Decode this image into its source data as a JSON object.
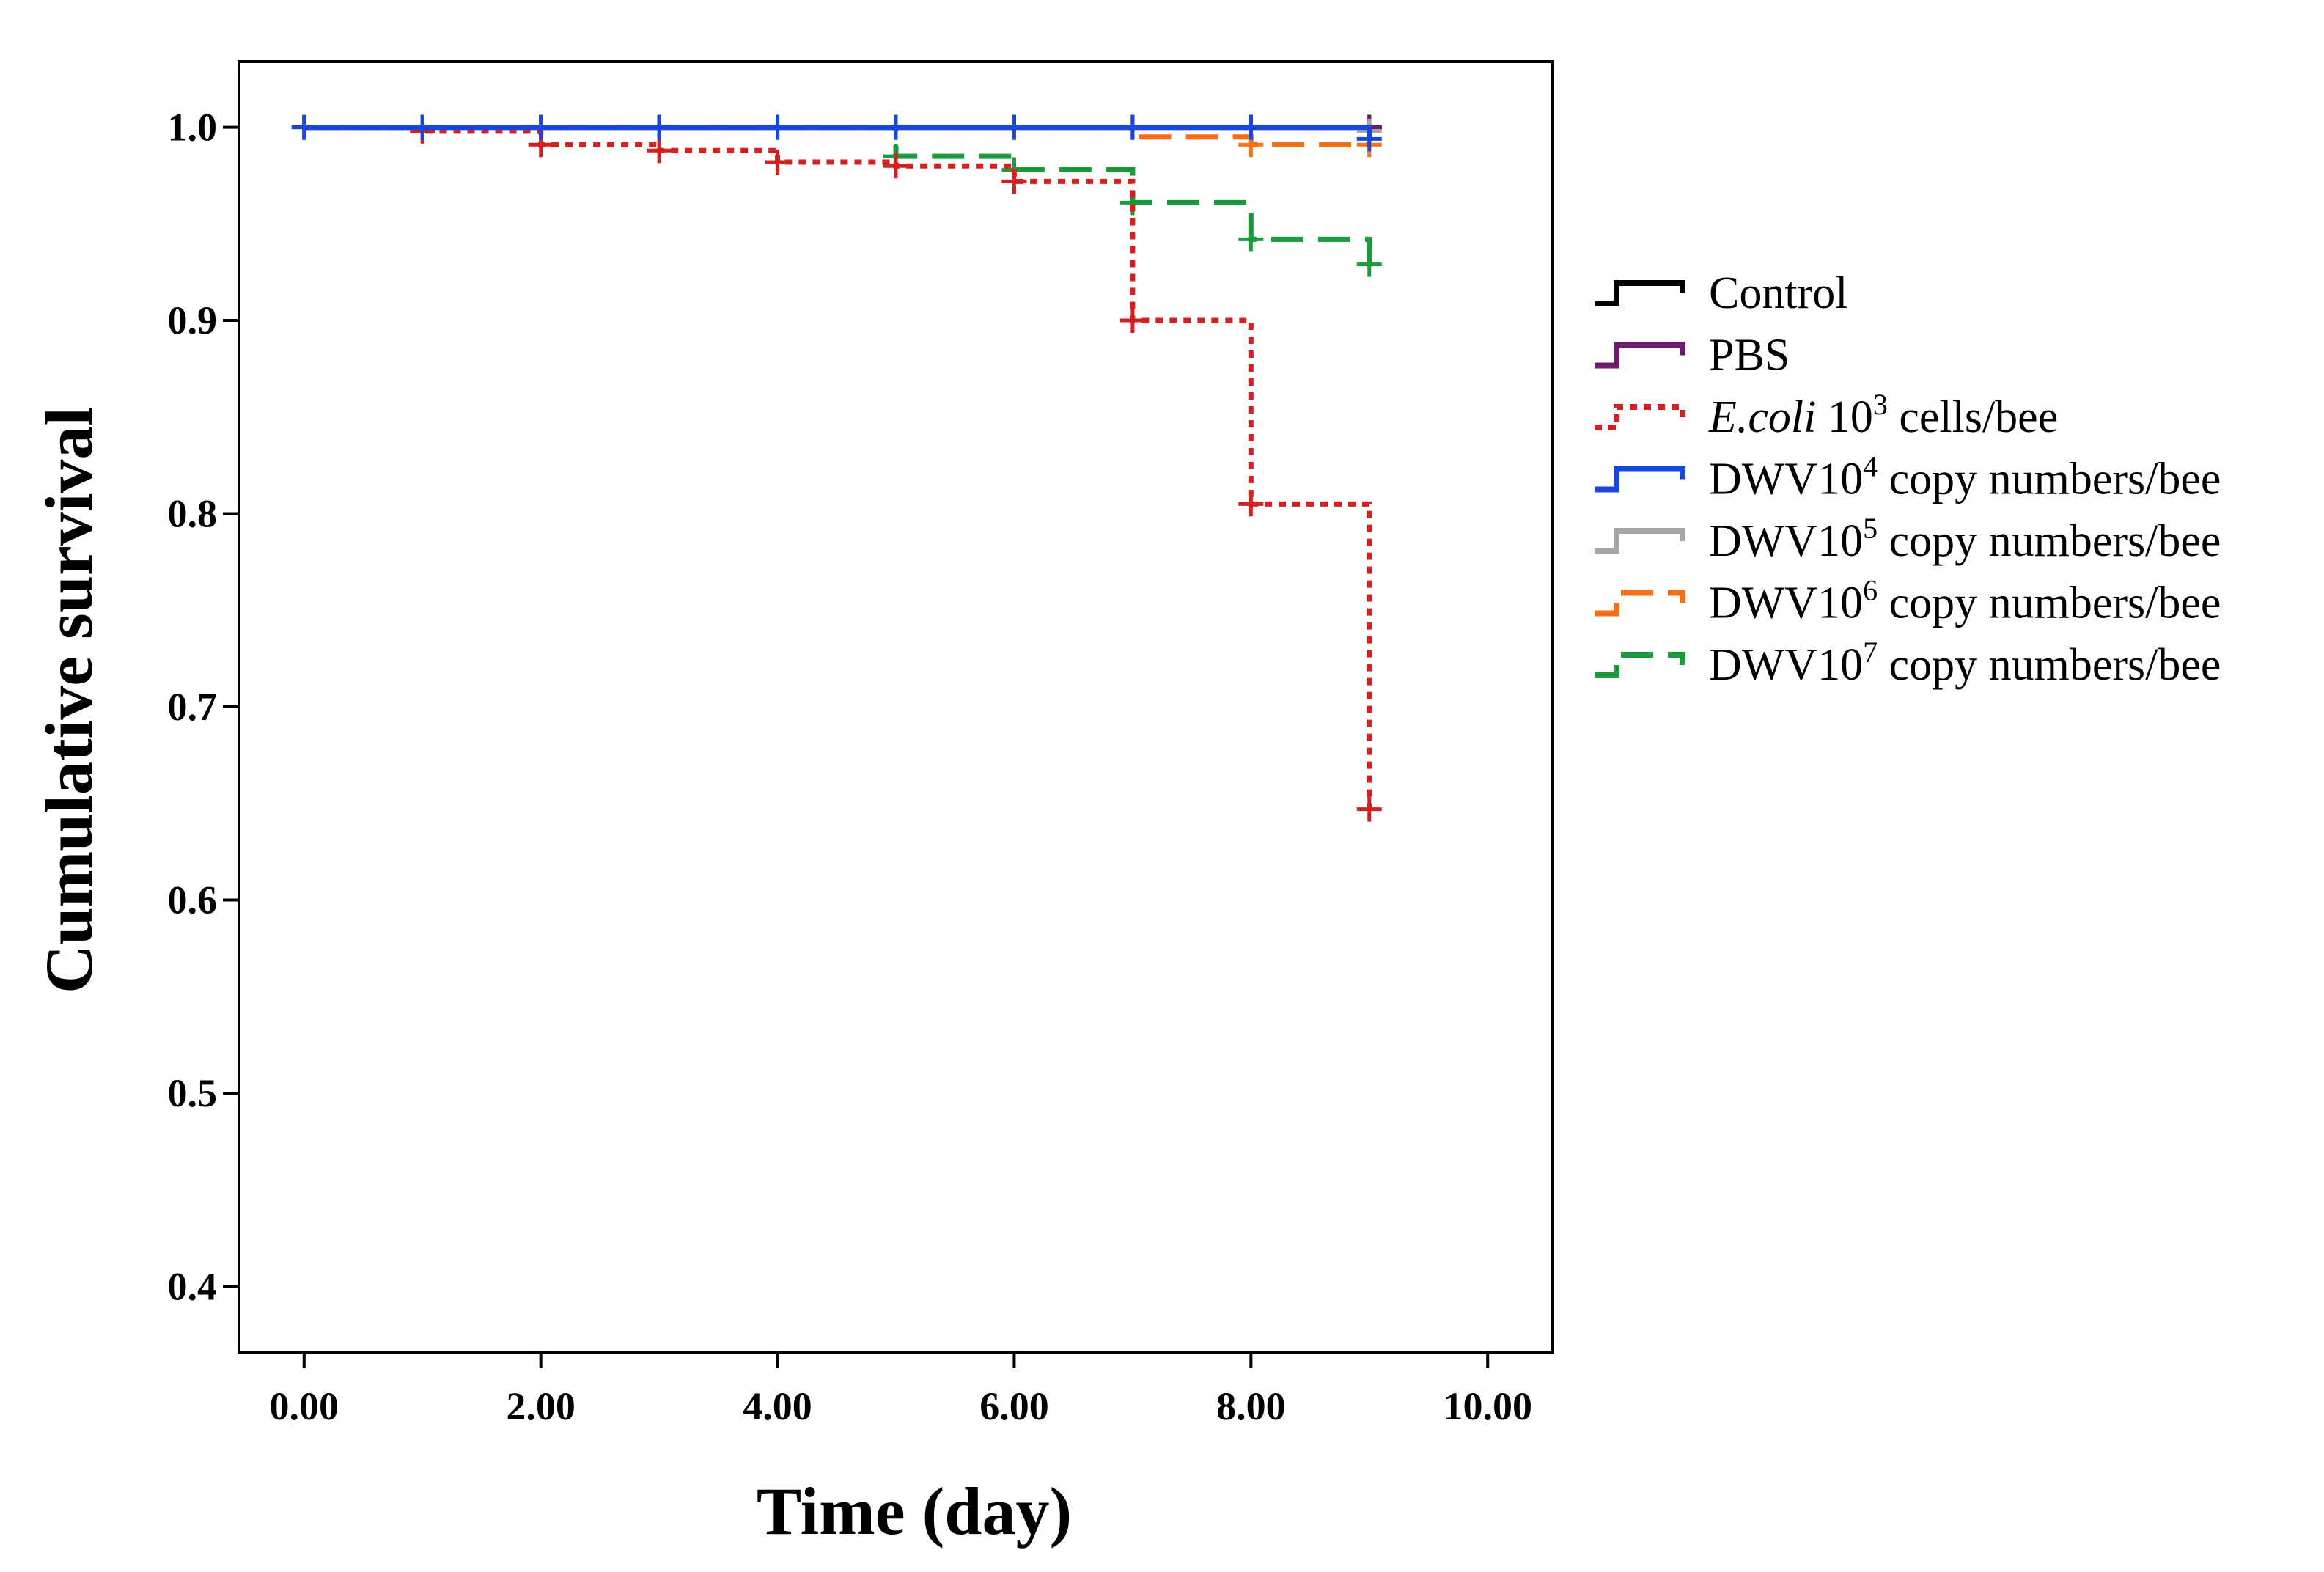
{
  "chart_data": {
    "type": "line",
    "subtype": "kaplan-meier step survival curves",
    "xlabel": "Time (day)",
    "ylabel": "Cumulative survival",
    "xlim": [
      -0.55,
      10.55
    ],
    "ylim": [
      0.366,
      1.034
    ],
    "xticks": [
      0,
      2,
      4,
      6,
      8,
      10
    ],
    "xtick_labels": [
      "0.00",
      "2.00",
      "4.00",
      "6.00",
      "8.00",
      "10.00"
    ],
    "yticks": [
      0.4,
      0.5,
      0.6,
      0.7,
      0.8,
      0.9,
      1.0
    ],
    "ytick_labels": [
      "0.4",
      "0.5",
      "0.6",
      "0.7",
      "0.8",
      "0.9",
      "1.0"
    ],
    "grid": false,
    "legend_position": "right",
    "series": [
      {
        "name": "Control",
        "legend": {
          "pre": "Control",
          "sup": "",
          "post": "",
          "italic": false
        },
        "color": "#000000",
        "dash": "solid",
        "steps": [
          [
            0,
            1.0
          ],
          [
            9,
            1.0
          ]
        ],
        "censored": [
          [
            0,
            1.0
          ],
          [
            1,
            1.0
          ],
          [
            2,
            1.0
          ],
          [
            3,
            1.0
          ],
          [
            4,
            1.0
          ],
          [
            5,
            1.0
          ],
          [
            6,
            1.0
          ],
          [
            7,
            1.0
          ],
          [
            8,
            1.0
          ],
          [
            9,
            1.0
          ]
        ]
      },
      {
        "name": "PBS",
        "legend": {
          "pre": "PBS",
          "sup": "",
          "post": "",
          "italic": false
        },
        "color": "#6a1b6a",
        "dash": "solid",
        "steps": [
          [
            0,
            1.0
          ],
          [
            9,
            1.0
          ]
        ],
        "censored": [
          [
            8,
            1.0
          ],
          [
            9,
            1.0
          ]
        ]
      },
      {
        "name": "DWV10^5 copy numbers/bee",
        "legend": {
          "pre": "DWV10",
          "sup": "5",
          "post": " copy numbers/bee",
          "italic": false
        },
        "color": "#a6a6a6",
        "dash": "solid",
        "steps": [
          [
            0,
            1.0
          ],
          [
            9,
            1.0
          ]
        ],
        "censored": [
          [
            9,
            0.998
          ]
        ]
      },
      {
        "name": "DWV10^6 copy numbers/bee",
        "legend": {
          "pre": "DWV10",
          "sup": "6",
          "post": " copy numbers/bee",
          "italic": false
        },
        "color": "#f2711c",
        "dash": "dashed",
        "steps": [
          [
            0,
            1.0
          ],
          [
            7,
            0.995
          ],
          [
            8,
            0.991
          ],
          [
            9,
            0.991
          ]
        ],
        "censored": [
          [
            8,
            0.991
          ],
          [
            9,
            0.991
          ]
        ]
      },
      {
        "name": "DWV10^7 copy numbers/bee",
        "legend": {
          "pre": "DWV10",
          "sup": "7",
          "post": " copy numbers/bee",
          "italic": false
        },
        "color": "#1a9a3a",
        "dash": "dashed",
        "steps": [
          [
            0,
            1.0
          ],
          [
            5,
            0.985
          ],
          [
            6,
            0.978
          ],
          [
            7,
            0.961
          ],
          [
            8,
            0.942
          ],
          [
            9,
            0.929
          ]
        ],
        "censored": [
          [
            5,
            0.985
          ],
          [
            6,
            0.978
          ],
          [
            7,
            0.961
          ],
          [
            8,
            0.942
          ],
          [
            9,
            0.929
          ]
        ]
      },
      {
        "name": "E.coli 10^3 cells/bee",
        "legend": {
          "pre": "E.coli",
          "sup": "3",
          "post": " cells/bee",
          "italic": true,
          "mid": " 10"
        },
        "color": "#d42020",
        "dash": "dotted",
        "steps": [
          [
            0,
            1.0
          ],
          [
            1,
            0.998
          ],
          [
            2,
            0.991
          ],
          [
            3,
            0.988
          ],
          [
            4,
            0.982
          ],
          [
            5,
            0.98
          ],
          [
            6,
            0.972
          ],
          [
            7,
            0.9
          ],
          [
            8,
            0.805
          ],
          [
            9,
            0.647
          ]
        ],
        "censored": [
          [
            1,
            0.998
          ],
          [
            2,
            0.991
          ],
          [
            3,
            0.988
          ],
          [
            4,
            0.982
          ],
          [
            5,
            0.98
          ],
          [
            6,
            0.972
          ],
          [
            7,
            0.9
          ],
          [
            8,
            0.805
          ],
          [
            9,
            0.647
          ]
        ]
      },
      {
        "name": "DWV10^4 copy numbers/bee",
        "legend": {
          "pre": "DWV10",
          "sup": "4",
          "post": " copy numbers/bee",
          "italic": false
        },
        "color": "#1a47d9",
        "dash": "solid",
        "steps": [
          [
            0,
            1.0
          ],
          [
            9,
            0.994
          ]
        ],
        "censored": [
          [
            0,
            1.0
          ],
          [
            1,
            1.0
          ],
          [
            2,
            1.0
          ],
          [
            3,
            1.0
          ],
          [
            4,
            1.0
          ],
          [
            5,
            1.0
          ],
          [
            6,
            1.0
          ],
          [
            7,
            1.0
          ],
          [
            8,
            1.0
          ],
          [
            9,
            0.994
          ]
        ]
      }
    ],
    "legend_order": [
      "Control",
      "PBS",
      "E.coli 10^3 cells/bee",
      "DWV10^4 copy numbers/bee",
      "DWV10^5 copy numbers/bee",
      "DWV10^6 copy numbers/bee",
      "DWV10^7 copy numbers/bee"
    ]
  }
}
